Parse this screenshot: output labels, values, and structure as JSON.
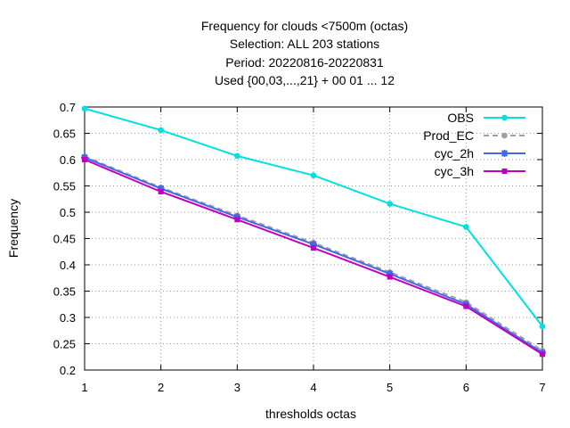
{
  "chart_data": {
    "type": "line",
    "title_lines": [
      "Frequency  for clouds <7500m (octas)",
      "Selection: ALL    203 stations",
      "Period: 20220816-20220831",
      "Used {00,03,...,21} + 00 01 ... 12"
    ],
    "xlabel": "thresholds octas",
    "ylabel": "Frequency",
    "xlim": [
      1,
      7
    ],
    "ylim": [
      0.2,
      0.7
    ],
    "x": [
      1,
      2,
      3,
      4,
      5,
      6,
      7
    ],
    "xticks": [
      "1",
      "2",
      "3",
      "4",
      "5",
      "6",
      "7"
    ],
    "yticks": [
      "0.2",
      "0.25",
      "0.3",
      "0.35",
      "0.4",
      "0.45",
      "0.5",
      "0.55",
      "0.6",
      "0.65",
      "0.7"
    ],
    "grid": true,
    "legend_position": "top-right",
    "series": [
      {
        "name": "OBS",
        "color": "#00e0e0",
        "dashed": false,
        "marker": "circle",
        "values": [
          0.697,
          0.656,
          0.607,
          0.57,
          0.516,
          0.472,
          0.283
        ]
      },
      {
        "name": "Prod_EC",
        "color": "#a0a0a0",
        "dashed": true,
        "marker": "circle",
        "values": [
          0.606,
          0.547,
          0.494,
          0.442,
          0.386,
          0.329,
          0.237
        ]
      },
      {
        "name": "cyc_2h",
        "color": "#4169e1",
        "dashed": false,
        "marker": "star",
        "values": [
          0.604,
          0.545,
          0.491,
          0.439,
          0.383,
          0.325,
          0.233
        ]
      },
      {
        "name": "cyc_3h",
        "color": "#c000c0",
        "dashed": false,
        "marker": "square",
        "values": [
          0.6,
          0.539,
          0.486,
          0.432,
          0.377,
          0.321,
          0.23
        ]
      }
    ]
  }
}
